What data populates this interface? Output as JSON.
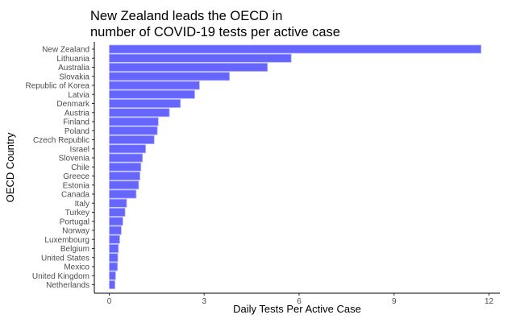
{
  "chart_data": {
    "type": "bar",
    "orientation": "horizontal",
    "title_lines": [
      "New Zealand leads the OECD in",
      "number of COVID-19 tests per active case"
    ],
    "xlabel": "Daily Tests Per Active Case",
    "ylabel": "OECD Country",
    "xlim": [
      0,
      12
    ],
    "xticks": [
      0,
      3,
      6,
      9,
      12
    ],
    "grid": false,
    "bar_color": "#6666ff",
    "bar_edge_color": "#b3b3ff",
    "categories": [
      "New Zealand",
      "Lithuania",
      "Australia",
      "Slovakia",
      "Republic of Korea",
      "Latvia",
      "Denmark",
      "Austria",
      "Finland",
      "Poland",
      "Czech Republic",
      "Israel",
      "Slovenia",
      "Chile",
      "Greece",
      "Estonia",
      "Canada",
      "Italy",
      "Turkey",
      "Portugal",
      "Norway",
      "Luxembourg",
      "Belgium",
      "United States",
      "Mexico",
      "United Kingdom",
      "Netherlands"
    ],
    "values": [
      11.75,
      5.75,
      5.0,
      3.8,
      2.85,
      2.7,
      2.25,
      1.9,
      1.55,
      1.52,
      1.42,
      1.15,
      1.05,
      1.0,
      0.97,
      0.93,
      0.85,
      0.55,
      0.5,
      0.43,
      0.38,
      0.33,
      0.29,
      0.27,
      0.26,
      0.2,
      0.18
    ]
  }
}
